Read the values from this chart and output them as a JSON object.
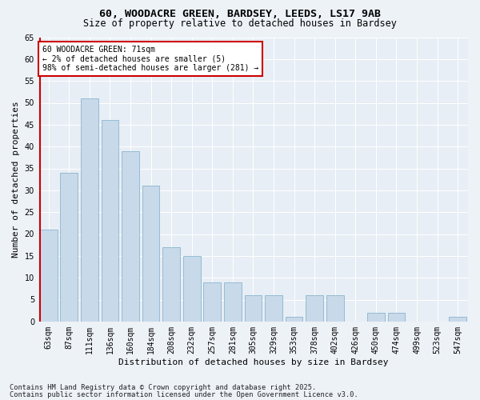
{
  "title1": "60, WOODACRE GREEN, BARDSEY, LEEDS, LS17 9AB",
  "title2": "Size of property relative to detached houses in Bardsey",
  "xlabel": "Distribution of detached houses by size in Bardsey",
  "ylabel": "Number of detached properties",
  "categories": [
    "63sqm",
    "87sqm",
    "111sqm",
    "136sqm",
    "160sqm",
    "184sqm",
    "208sqm",
    "232sqm",
    "257sqm",
    "281sqm",
    "305sqm",
    "329sqm",
    "353sqm",
    "378sqm",
    "402sqm",
    "426sqm",
    "450sqm",
    "474sqm",
    "499sqm",
    "523sqm",
    "547sqm"
  ],
  "values": [
    21,
    34,
    51,
    46,
    39,
    31,
    17,
    15,
    9,
    9,
    6,
    6,
    1,
    6,
    6,
    0,
    2,
    2,
    0,
    0,
    1
  ],
  "highlight_index": 0,
  "bar_color": "#c8d9ea",
  "bar_edge_color": "#7aacc8",
  "highlight_bar_left_color": "#cc0000",
  "annotation_text": "60 WOODACRE GREEN: 71sqm\n← 2% of detached houses are smaller (5)\n98% of semi-detached houses are larger (281) →",
  "ylim": [
    0,
    65
  ],
  "yticks": [
    0,
    5,
    10,
    15,
    20,
    25,
    30,
    35,
    40,
    45,
    50,
    55,
    60,
    65
  ],
  "footer1": "Contains HM Land Registry data © Crown copyright and database right 2025.",
  "footer2": "Contains public sector information licensed under the Open Government Licence v3.0.",
  "bg_color": "#edf2f7",
  "plot_bg_color": "#e8eef5",
  "grid_color": "#ffffff",
  "title_fontsize": 9.5,
  "subtitle_fontsize": 8.5,
  "axis_label_fontsize": 8,
  "tick_fontsize": 7,
  "annotation_fontsize": 7,
  "footer_fontsize": 6.2
}
